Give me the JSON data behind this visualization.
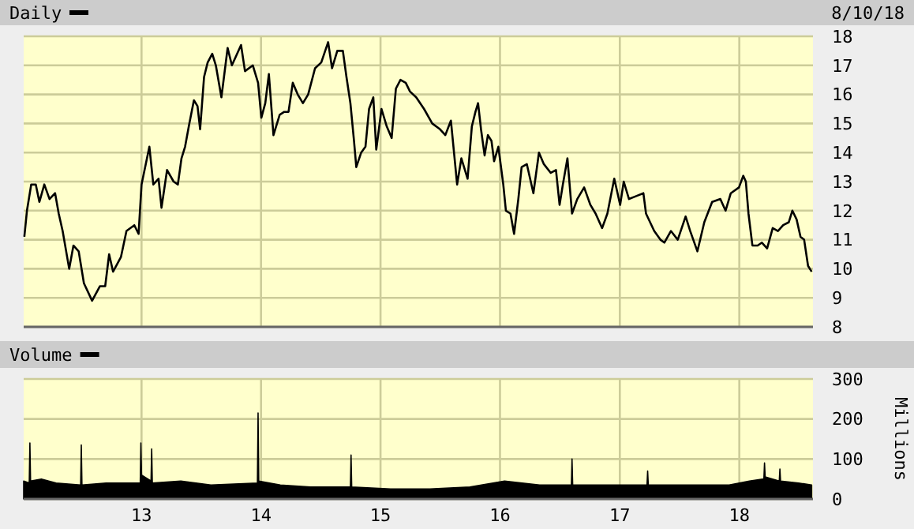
{
  "chart_data": [
    {
      "type": "line",
      "grid": true,
      "legend": "top left",
      "tick_labels": "y",
      "annotations": [
        "8/10/18"
      ],
      "xlim": [
        "2012-01-07",
        "2018-08-14"
      ],
      "xticks": [
        {
          "value": "2013-01-01",
          "label": null
        },
        {
          "value": "2014-01-01",
          "label": null
        },
        {
          "value": "2015-01-01",
          "label": null
        },
        {
          "value": "2016-01-01",
          "label": null
        },
        {
          "value": "2017-01-01",
          "label": null
        },
        {
          "value": "2018-01-01",
          "label": null
        }
      ],
      "ylim": [
        8,
        18
      ],
      "yticks": [
        8,
        9,
        10,
        11,
        12,
        13,
        14,
        15,
        16,
        17,
        18
      ],
      "series": [
        {
          "name": "Daily",
          "color": "#000000",
          "x": [
            "2012-01-09",
            "2012-01-17",
            "2012-01-30",
            "2012-02-13",
            "2012-02-24",
            "2012-03-10",
            "2012-03-26",
            "2012-04-12",
            "2012-04-23",
            "2012-05-05",
            "2012-05-25",
            "2012-06-07",
            "2012-06-23",
            "2012-07-09",
            "2012-08-03",
            "2012-08-27",
            "2012-09-12",
            "2012-09-24",
            "2012-10-06",
            "2012-10-30",
            "2012-11-16",
            "2012-12-10",
            "2012-12-23",
            "2013-01-01",
            "2013-01-25",
            "2013-02-06",
            "2013-02-22",
            "2013-03-03",
            "2013-03-20",
            "2013-04-09",
            "2013-04-22",
            "2013-05-03",
            "2013-05-14",
            "2013-05-27",
            "2013-06-10",
            "2013-06-21",
            "2013-06-29",
            "2013-07-11",
            "2013-07-22",
            "2013-08-05",
            "2013-08-16",
            "2013-09-02",
            "2013-09-21",
            "2013-10-04",
            "2013-10-16",
            "2013-11-01",
            "2013-11-13",
            "2013-12-07",
            "2013-12-23",
            "2014-01-02",
            "2014-01-14",
            "2014-01-25",
            "2014-02-08",
            "2014-02-27",
            "2014-03-13",
            "2014-03-26",
            "2014-04-08",
            "2014-04-23",
            "2014-05-09",
            "2014-05-25",
            "2014-06-15",
            "2014-07-04",
            "2014-07-25",
            "2014-08-06",
            "2014-08-22",
            "2014-09-08",
            "2014-09-19",
            "2014-10-01",
            "2014-10-12",
            "2014-10-19",
            "2014-11-03",
            "2014-11-16",
            "2014-11-27",
            "2014-12-10",
            "2014-12-19",
            "2015-01-04",
            "2015-01-20",
            "2015-02-04",
            "2015-02-17",
            "2015-03-03",
            "2015-03-19",
            "2015-04-01",
            "2015-04-20",
            "2015-05-14",
            "2015-06-08",
            "2015-07-02",
            "2015-07-18",
            "2015-08-04",
            "2015-08-23",
            "2015-09-05",
            "2015-09-24",
            "2015-10-07",
            "2015-10-18",
            "2015-10-26",
            "2015-11-04",
            "2015-11-15",
            "2015-11-25",
            "2015-12-06",
            "2015-12-14",
            "2015-12-27",
            "2016-01-11",
            "2016-01-19",
            "2016-02-02",
            "2016-02-13",
            "2016-02-26",
            "2016-03-07",
            "2016-03-23",
            "2016-04-12",
            "2016-04-29",
            "2016-05-14",
            "2016-06-04",
            "2016-06-20",
            "2016-07-01",
            "2016-07-11",
            "2016-07-25",
            "2016-08-08",
            "2016-08-24",
            "2016-09-14",
            "2016-10-03",
            "2016-10-19",
            "2016-11-08",
            "2016-11-24",
            "2016-12-15",
            "2017-01-02",
            "2017-01-13",
            "2017-01-29",
            "2017-02-20",
            "2017-03-14",
            "2017-03-22",
            "2017-04-16",
            "2017-05-05",
            "2017-05-17",
            "2017-06-06",
            "2017-06-27",
            "2017-07-21",
            "2017-08-04",
            "2017-08-26",
            "2017-09-16",
            "2017-10-10",
            "2017-11-04",
            "2017-11-20",
            "2017-12-06",
            "2017-12-31",
            "2018-01-13",
            "2018-01-21",
            "2018-01-29",
            "2018-02-10",
            "2018-02-26",
            "2018-03-11",
            "2018-03-27",
            "2018-04-13",
            "2018-04-29",
            "2018-05-15",
            "2018-06-01",
            "2018-06-12",
            "2018-06-25",
            "2018-07-07",
            "2018-07-18",
            "2018-07-30",
            "2018-08-10"
          ],
          "values": [
            11.1,
            12.0,
            12.9,
            12.9,
            12.3,
            12.9,
            12.4,
            12.6,
            11.9,
            11.3,
            10.0,
            10.8,
            10.6,
            9.5,
            8.9,
            9.4,
            9.4,
            10.5,
            9.9,
            10.4,
            11.3,
            11.5,
            11.2,
            12.9,
            14.2,
            12.9,
            13.1,
            12.1,
            13.4,
            13.0,
            12.9,
            13.8,
            14.2,
            15.0,
            15.8,
            15.6,
            14.8,
            16.6,
            17.1,
            17.4,
            17.0,
            15.9,
            17.6,
            17.0,
            17.3,
            17.7,
            16.8,
            17.0,
            16.4,
            15.2,
            15.7,
            16.7,
            14.6,
            15.3,
            15.4,
            15.4,
            16.4,
            16.0,
            15.7,
            16.0,
            16.9,
            17.1,
            17.8,
            16.9,
            17.5,
            17.5,
            16.6,
            15.7,
            14.4,
            13.5,
            14.0,
            14.2,
            15.5,
            15.9,
            14.1,
            15.5,
            14.9,
            14.5,
            16.2,
            16.5,
            16.4,
            16.1,
            15.9,
            15.5,
            15.0,
            14.8,
            14.6,
            15.1,
            12.9,
            13.8,
            13.1,
            14.9,
            15.4,
            15.7,
            14.8,
            13.9,
            14.6,
            14.4,
            13.7,
            14.2,
            12.9,
            12.0,
            11.9,
            11.2,
            12.4,
            13.5,
            13.6,
            12.6,
            14.0,
            13.6,
            13.3,
            13.4,
            12.2,
            12.9,
            13.8,
            11.9,
            12.4,
            12.8,
            12.2,
            11.9,
            11.4,
            11.9,
            13.1,
            12.2,
            13.0,
            12.4,
            12.5,
            12.6,
            11.9,
            11.3,
            11.0,
            10.9,
            11.3,
            11.0,
            11.8,
            11.3,
            10.6,
            11.6,
            12.3,
            12.4,
            12.0,
            12.6,
            12.8,
            13.2,
            13.0,
            11.9,
            10.8,
            10.8,
            10.9,
            10.7,
            11.4,
            11.3,
            11.5,
            11.6,
            12.0,
            11.7,
            11.1,
            11.0,
            10.1,
            9.9
          ]
        }
      ]
    },
    {
      "type": "area",
      "grid": true,
      "legend": "top left",
      "ylabel": "Millions",
      "xlim": [
        "2012-01-07",
        "2018-08-14"
      ],
      "xticks": [
        {
          "value": "2013-01-01",
          "label": "13"
        },
        {
          "value": "2014-01-01",
          "label": "14"
        },
        {
          "value": "2015-01-01",
          "label": "15"
        },
        {
          "value": "2016-01-01",
          "label": "16"
        },
        {
          "value": "2017-01-01",
          "label": "17"
        },
        {
          "value": "2018-01-01",
          "label": "18"
        }
      ],
      "ylim": [
        0,
        300
      ],
      "yticks": [
        0,
        100,
        200,
        300
      ],
      "series": [
        {
          "name": "Volume",
          "color": "#000000",
          "x": [
            "2012-01-07",
            "2012-01-24",
            "2012-01-26",
            "2012-01-28",
            "2012-03-01",
            "2012-04-15",
            "2012-06-29",
            "2012-07-01",
            "2012-07-03",
            "2012-09-15",
            "2012-12-28",
            "2012-12-30",
            "2013-01-01",
            "2013-01-30",
            "2013-02-01",
            "2013-02-03",
            "2013-05-01",
            "2013-08-01",
            "2013-12-21",
            "2013-12-23",
            "2013-12-25",
            "2014-03-01",
            "2014-06-01",
            "2014-10-01",
            "2014-10-03",
            "2014-10-05",
            "2015-02-01",
            "2015-06-01",
            "2015-10-01",
            "2016-01-15",
            "2016-05-01",
            "2016-08-06",
            "2016-08-08",
            "2016-08-10",
            "2016-12-01",
            "2017-03-25",
            "2017-03-27",
            "2017-03-29",
            "2017-08-01",
            "2017-12-01",
            "2018-02-01",
            "2018-03-17",
            "2018-03-19",
            "2018-03-21",
            "2018-05-03",
            "2018-05-05",
            "2018-05-07",
            "2018-07-01",
            "2018-08-10"
          ],
          "values": [
            45,
            40,
            140,
            45,
            50,
            40,
            35,
            135,
            35,
            40,
            40,
            140,
            60,
            45,
            125,
            40,
            45,
            35,
            40,
            215,
            45,
            35,
            30,
            30,
            110,
            30,
            25,
            25,
            30,
            45,
            35,
            35,
            100,
            35,
            35,
            35,
            70,
            35,
            35,
            35,
            45,
            50,
            90,
            55,
            45,
            75,
            45,
            40,
            35
          ]
        }
      ]
    }
  ]
}
